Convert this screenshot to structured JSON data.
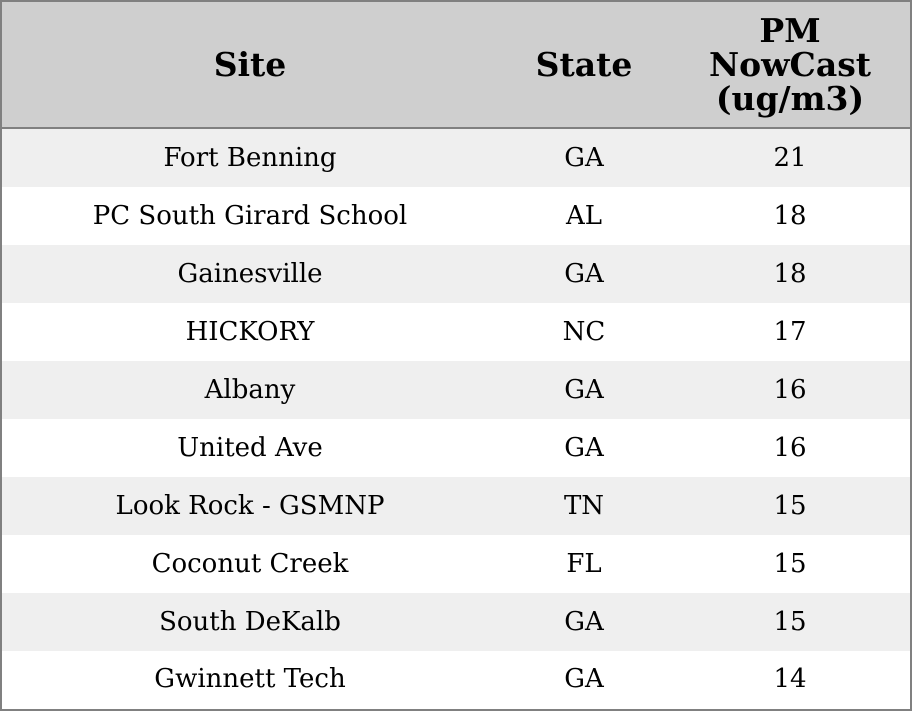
{
  "table": {
    "headers": {
      "site": "Site",
      "state": "State",
      "pm": "PM\nNowCast\n(ug/m3)"
    },
    "rows": [
      {
        "site": "Fort Benning",
        "state": "GA",
        "pm": "21"
      },
      {
        "site": "PC South Girard School",
        "state": "AL",
        "pm": "18"
      },
      {
        "site": "Gainesville",
        "state": "GA",
        "pm": "18"
      },
      {
        "site": "HICKORY",
        "state": "NC",
        "pm": "17"
      },
      {
        "site": "Albany",
        "state": "GA",
        "pm": "16"
      },
      {
        "site": "United Ave",
        "state": "GA",
        "pm": "16"
      },
      {
        "site": "Look Rock - GSMNP",
        "state": "TN",
        "pm": "15"
      },
      {
        "site": "Coconut Creek",
        "state": "FL",
        "pm": "15"
      },
      {
        "site": "South DeKalb",
        "state": "GA",
        "pm": "15"
      },
      {
        "site": "Gwinnett Tech",
        "state": "GA",
        "pm": "14"
      }
    ]
  },
  "colors": {
    "header_bg": "#cfcfcf",
    "stripe_bg": "#efefef",
    "border": "#808080"
  }
}
